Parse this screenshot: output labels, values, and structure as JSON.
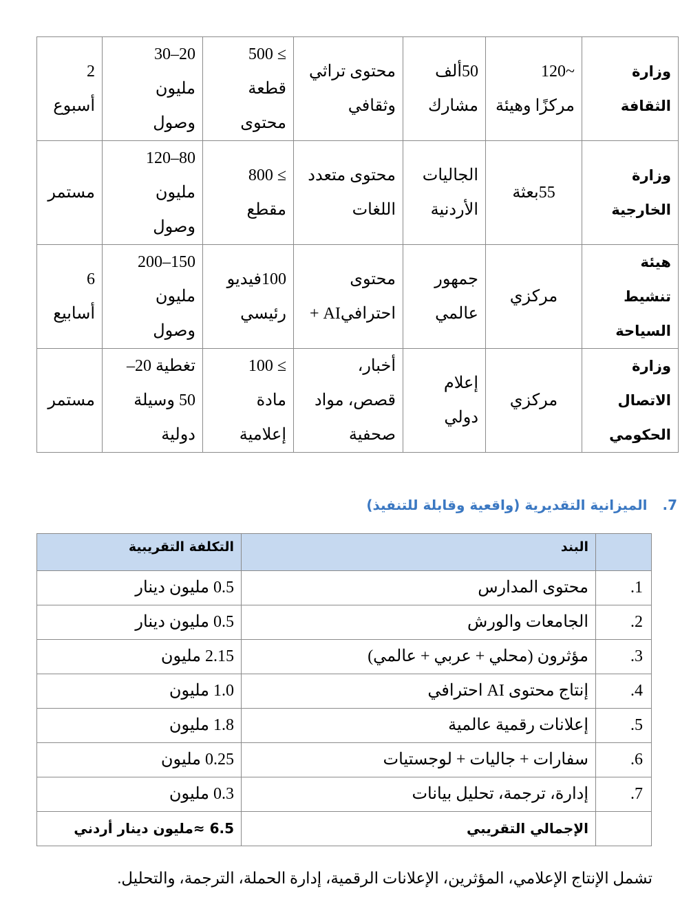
{
  "entities_table": {
    "rows": [
      {
        "entity": [
          "وزارة",
          "الثقافة"
        ],
        "scope": [
          "~120",
          "مركزًا وهيئة"
        ],
        "audience": [
          "50ألف",
          "مشارك"
        ],
        "content": [
          "محتوى تراثي",
          "وثقافي"
        ],
        "volume": [
          "≥ 500",
          "قطعة",
          "محتوى"
        ],
        "reach": [
          "20–30",
          "مليون",
          "وصول"
        ],
        "duration": [
          "2",
          "أسبوع"
        ]
      },
      {
        "entity": [
          "وزارة",
          "الخارجية"
        ],
        "scope": [
          "55بعثة"
        ],
        "audience": [
          "الجاليات",
          "الأردنية"
        ],
        "content": [
          "محتوى متعدد",
          "اللغات"
        ],
        "volume": [
          "≥ 800",
          "مقطع"
        ],
        "reach": [
          "80–120",
          "مليون",
          "وصول"
        ],
        "duration": [
          "مستمر"
        ]
      },
      {
        "entity": [
          "هيئة تنشيط",
          "السياحة"
        ],
        "scope": [
          "مركزي"
        ],
        "audience": [
          "جمهور",
          "عالمي"
        ],
        "content": [
          "محتوى",
          "احترافيAI + "
        ],
        "volume": [
          "100فيديو",
          "رئيسي"
        ],
        "reach": [
          "150–200",
          "مليون",
          "وصول"
        ],
        "duration": [
          "6",
          "أسابيع"
        ]
      },
      {
        "entity": [
          "وزارة",
          "الاتصال",
          "الحكومي"
        ],
        "scope": [
          "مركزي"
        ],
        "audience": [
          "إعلام",
          "دولي"
        ],
        "content": [
          "أخبار،",
          "قصص، مواد",
          "صحفية"
        ],
        "volume": [
          "≥ 100",
          "مادة",
          "إعلامية"
        ],
        "reach": [
          "تغطية 20–",
          "50 وسيلة",
          "دولية"
        ],
        "duration": [
          "مستمر"
        ]
      }
    ]
  },
  "budget": {
    "heading_number": "7.",
    "heading": "الميزانية التقديرية (واقعية وقابلة للتنفيذ)",
    "columns": [
      "",
      "البند",
      "التكلفة التقريبية"
    ],
    "rows": [
      {
        "no": "1.",
        "item": "محتوى المدارس",
        "cost": "0.5  مليون دينار"
      },
      {
        "no": "2.",
        "item": "الجامعات والورش",
        "cost": "0.5  مليون دينار"
      },
      {
        "no": "3.",
        "item": "مؤثرون (محلي + عربي + عالمي)",
        "cost": "2.15  مليون"
      },
      {
        "no": "4.",
        "item": "إنتاج محتوى AI احترافي",
        "cost": "1.0  مليون"
      },
      {
        "no": "5.",
        "item": "إعلانات رقمية عالمية",
        "cost": "1.8  مليون"
      },
      {
        "no": "6.",
        "item": "سفارات + جاليات + لوجستيات",
        "cost": "0.25  مليون"
      },
      {
        "no": "7.",
        "item": "إدارة، ترجمة، تحليل بيانات",
        "cost": "0.3  مليون"
      }
    ],
    "total_label": "الإجمالي التقريبي",
    "total_value": "6.5 ≈مليون دينار أردني",
    "header_color": "#c6d9f0",
    "heading_color": "#3b78c2"
  },
  "note": "تشمل الإنتاج الإعلامي، المؤثرين، الإعلانات الرقمية، إدارة الحملة، الترجمة، والتحليل."
}
